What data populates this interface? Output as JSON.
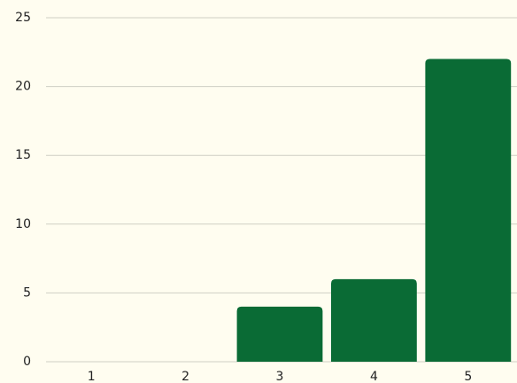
{
  "chart_data": {
    "type": "bar",
    "categories": [
      "1",
      "2",
      "3",
      "4",
      "5"
    ],
    "values": [
      0,
      0,
      4,
      6,
      22
    ],
    "color": "#0a6b35",
    "ylim": [
      0,
      25
    ],
    "yticks": [
      0,
      5,
      10,
      15,
      20,
      25
    ],
    "grid": true
  }
}
